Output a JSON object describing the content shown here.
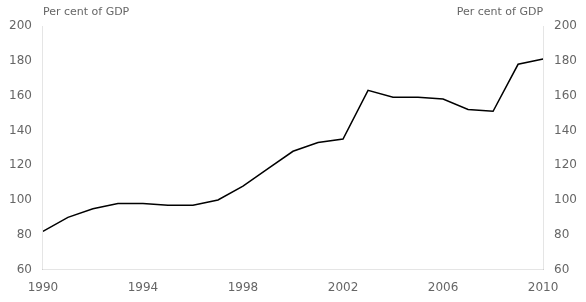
{
  "chart_data": {
    "type": "line",
    "ylabel": "Per cent of GDP",
    "y2label": "Per cent of GDP",
    "x": [
      1990,
      1991,
      1992,
      1993,
      1994,
      1995,
      1996,
      1997,
      1998,
      1999,
      2000,
      2001,
      2002,
      2003,
      2004,
      2005,
      2006,
      2007,
      2008,
      2009,
      2010
    ],
    "values": [
      82,
      90,
      95,
      98,
      98,
      97,
      97,
      100,
      108,
      118,
      128,
      133,
      135,
      163,
      159,
      159,
      158,
      152,
      151,
      178,
      181
    ],
    "color": "#000000",
    "xlim": [
      1990,
      2010
    ],
    "xticks": [
      1990,
      1994,
      1998,
      2002,
      2006,
      2010
    ],
    "ylim": [
      60,
      200
    ],
    "yticks": [
      60,
      80,
      100,
      120,
      140,
      160,
      180,
      200
    ],
    "y2lim": [
      60,
      200
    ],
    "y2ticks": [
      60,
      80,
      100,
      120,
      140,
      160,
      180,
      200
    ],
    "grid": false
  }
}
